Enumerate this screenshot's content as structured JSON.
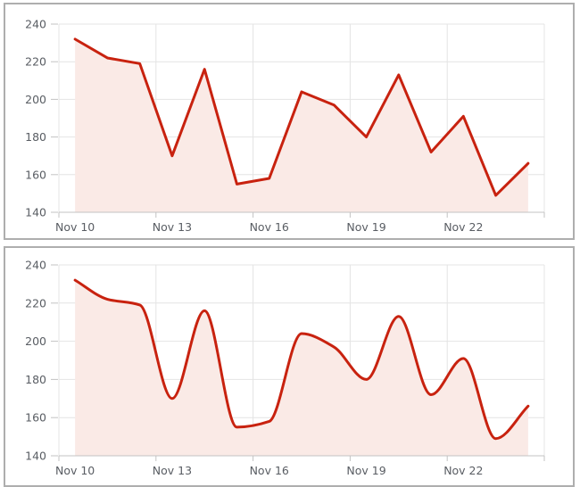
{
  "page": {
    "background": "#ffffff",
    "panel_border_color": "#aeaeae"
  },
  "chart_data": [
    {
      "type": "area",
      "variant": "straight",
      "title": "",
      "xlabel": "",
      "ylabel": "",
      "categories": [
        "Nov 10",
        "Nov 11",
        "Nov 12",
        "Nov 13",
        "Nov 14",
        "Nov 15",
        "Nov 16",
        "Nov 17",
        "Nov 18",
        "Nov 19",
        "Nov 20",
        "Nov 21",
        "Nov 22",
        "Nov 23",
        "Nov 24"
      ],
      "values": [
        232,
        222,
        219,
        170,
        216,
        155,
        158,
        204,
        197,
        180,
        213,
        172,
        191,
        149,
        166
      ],
      "x_tick_labels": [
        "Nov 10",
        "Nov 13",
        "Nov 16",
        "Nov 19",
        "Nov 22"
      ],
      "x_label_interval": 3,
      "y_ticks": [
        140,
        160,
        180,
        200,
        220,
        240
      ],
      "ylim": [
        140,
        240
      ],
      "grid": true,
      "legend": "none",
      "line_color": "#c8220f",
      "fill_color": "#faeae6",
      "grid_color": "#e4e4e4",
      "axis_color": "#c3c3c3",
      "label_color": "#595d63"
    },
    {
      "type": "area",
      "variant": "smooth",
      "title": "",
      "xlabel": "",
      "ylabel": "",
      "categories": [
        "Nov 10",
        "Nov 11",
        "Nov 12",
        "Nov 13",
        "Nov 14",
        "Nov 15",
        "Nov 16",
        "Nov 17",
        "Nov 18",
        "Nov 19",
        "Nov 20",
        "Nov 21",
        "Nov 22",
        "Nov 23",
        "Nov 24"
      ],
      "values": [
        232,
        222,
        219,
        170,
        216,
        155,
        158,
        204,
        197,
        180,
        213,
        172,
        191,
        149,
        166
      ],
      "x_tick_labels": [
        "Nov 10",
        "Nov 13",
        "Nov 16",
        "Nov 19",
        "Nov 22"
      ],
      "x_label_interval": 3,
      "y_ticks": [
        140,
        160,
        180,
        200,
        220,
        240
      ],
      "ylim": [
        140,
        240
      ],
      "grid": true,
      "legend": "none",
      "line_color": "#c8220f",
      "fill_color": "#faeae6",
      "grid_color": "#e4e4e4",
      "axis_color": "#c3c3c3",
      "label_color": "#595d63"
    }
  ]
}
